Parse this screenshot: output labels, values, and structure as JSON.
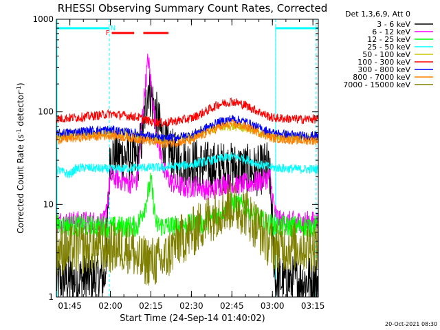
{
  "chart_data": {
    "type": "line",
    "title": "RHESSI Observing Summary Count Rates, Corrected",
    "xlabel": "Start Time (24-Sep-14 01:40:02)",
    "ylabel": "Corrected Count Rate (s⁻¹ detector⁻¹)",
    "ylabel_parts": [
      "Corrected Count Rate (s",
      "-1",
      " detector",
      "-1",
      ")"
    ],
    "yscale": "log",
    "ylim": [
      1,
      1000
    ],
    "xlim_minutes": [
      0,
      97
    ],
    "ytick_labels": [
      {
        "value": 1,
        "label": "1"
      },
      {
        "value": 10,
        "label": "10"
      },
      {
        "value": 100,
        "label": "100"
      },
      {
        "value": 1000,
        "label": "1000"
      }
    ],
    "xtick_labels": [
      {
        "minutes": 5,
        "label": "01:45"
      },
      {
        "minutes": 20,
        "label": "02:00"
      },
      {
        "minutes": 35,
        "label": "02:15"
      },
      {
        "minutes": 50,
        "label": "02:30"
      },
      {
        "minutes": 65,
        "label": "02:45"
      },
      {
        "minutes": 80,
        "label": "03:00"
      },
      {
        "minutes": 95,
        "label": "03:15"
      }
    ],
    "legend_header": "Det 1,3,6,9, Att 0",
    "legend_position": "top-right",
    "series": [
      {
        "name": "3 - 6 keV",
        "color": "#000000",
        "x": [
          0,
          18,
          20,
          27,
          30,
          32,
          34,
          37,
          40,
          45,
          55,
          65,
          75,
          78,
          79,
          80,
          81,
          83,
          97
        ],
        "y": [
          1.5,
          1.6,
          35,
          33,
          29,
          60,
          200,
          90,
          45,
          30,
          26,
          25,
          23,
          26,
          20,
          6,
          1.5,
          1.5,
          1.5
        ]
      },
      {
        "name": "6 - 12 keV",
        "color": "#ff00ff",
        "x": [
          0,
          18,
          20,
          27,
          30,
          32,
          34,
          37,
          40,
          43,
          48,
          52,
          57,
          62,
          67,
          72,
          76,
          79,
          81,
          83,
          97
        ],
        "y": [
          6.5,
          6.5,
          20,
          17,
          18,
          100,
          380,
          60,
          22,
          17,
          15,
          16,
          14,
          17,
          16,
          17,
          18,
          20,
          8,
          6.5,
          6.5
        ]
      },
      {
        "name": "12 - 25 keV",
        "color": "#00ff00",
        "x": [
          0,
          20,
          30,
          33,
          35,
          37,
          40,
          45,
          55,
          60,
          65,
          70,
          75,
          80,
          83,
          97
        ],
        "y": [
          6,
          5.7,
          5.8,
          10,
          18,
          6,
          5.8,
          5.8,
          6.3,
          7.8,
          10.5,
          9.5,
          6.8,
          6,
          5.8,
          5.8
        ]
      },
      {
        "name": "25 - 50 keV",
        "color": "#00ffff",
        "x": [
          0,
          3,
          5,
          7,
          10,
          20,
          30,
          40,
          50,
          60,
          65,
          70,
          75,
          80,
          90,
          97
        ],
        "y": [
          24,
          22,
          21,
          24,
          25,
          24,
          25,
          25,
          27,
          31,
          33,
          31,
          27,
          25,
          24,
          24
        ]
      },
      {
        "name": "50 - 100 keV",
        "color": "#c8c800",
        "x": [
          0,
          10,
          20,
          30,
          40,
          50,
          55,
          60,
          65,
          70,
          75,
          80,
          90,
          97
        ],
        "y": [
          55,
          58,
          60,
          55,
          50,
          54,
          62,
          68,
          70,
          67,
          60,
          55,
          53,
          53
        ]
      },
      {
        "name": "100 - 300 keV",
        "color": "#ff0000",
        "x": [
          0,
          10,
          20,
          30,
          35,
          40,
          50,
          55,
          60,
          65,
          70,
          75,
          80,
          90,
          97
        ],
        "y": [
          84,
          88,
          95,
          88,
          78,
          76,
          85,
          100,
          120,
          130,
          118,
          100,
          86,
          83,
          84
        ]
      },
      {
        "name": "300 - 800 keV",
        "color": "#0000ff",
        "x": [
          0,
          10,
          20,
          30,
          40,
          50,
          55,
          60,
          65,
          70,
          75,
          80,
          90,
          97
        ],
        "y": [
          58,
          62,
          64,
          58,
          51,
          56,
          66,
          77,
          84,
          78,
          67,
          59,
          55,
          55
        ]
      },
      {
        "name": "800 - 7000 keV",
        "color": "#ff8000",
        "x": [
          0,
          10,
          20,
          30,
          40,
          50,
          55,
          60,
          65,
          70,
          75,
          80,
          90,
          97
        ],
        "y": [
          50,
          53,
          56,
          51,
          45,
          49,
          58,
          68,
          74,
          69,
          60,
          52,
          49,
          49
        ]
      },
      {
        "name": "7000 - 15000 keV",
        "color": "#808000",
        "x": [
          0,
          20,
          28,
          30,
          33,
          37,
          40,
          43,
          45,
          50,
          55,
          60,
          65,
          70,
          75,
          80,
          97
        ],
        "y": [
          3.2,
          3.4,
          3.4,
          2.4,
          2.5,
          2.4,
          2.5,
          3.3,
          4,
          4.8,
          6.5,
          8.5,
          9.8,
          8.5,
          5.5,
          3.5,
          3.5
        ]
      }
    ],
    "flags": [
      {
        "label": "N",
        "color": "#00ffff",
        "segments": [
          [
            0,
            19.6
          ],
          [
            81.2,
            97
          ]
        ]
      },
      {
        "label": "F",
        "color": "#ff0000",
        "segments": [
          [
            20.5,
            28.8
          ],
          [
            32.2,
            41.5
          ]
        ]
      }
    ],
    "flag_marker_labels": [
      {
        "text": "F",
        "minutes": 19,
        "color": "#ff0000"
      },
      {
        "text": "N",
        "minutes": 21,
        "color": "#00ffff"
      }
    ],
    "vertical_markers_minutes": [
      19.6,
      81.2,
      96.2
    ],
    "grid": false
  },
  "footer": {
    "timestamp": "20-Oct-2021 08:30"
  }
}
